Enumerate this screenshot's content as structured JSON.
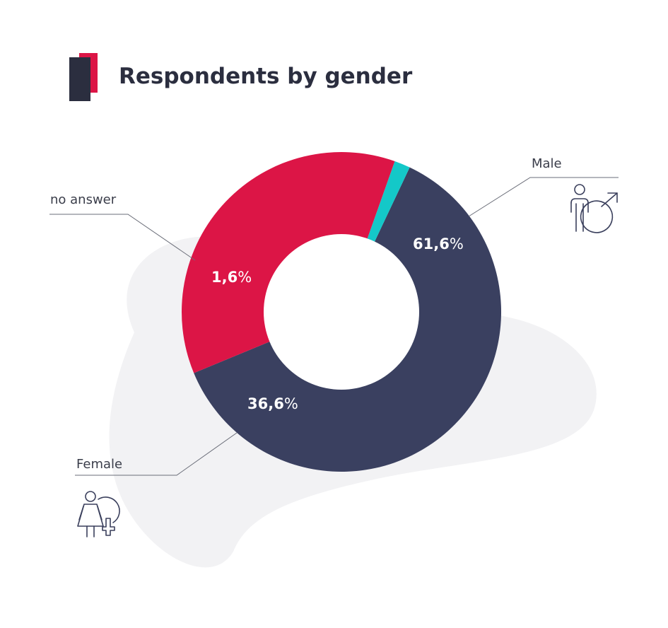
{
  "colors": {
    "background": "#ffffff",
    "blob": "#f2f2f4",
    "title": "#2b2e3f",
    "accent_dark": "#2b2e3f",
    "accent_red": "#dc1546",
    "label_text": "#3a3d4a",
    "leader_line": "#6a6d78",
    "icon": "#3a3f5c",
    "hole": "#ffffff"
  },
  "icons": {
    "male": "male-person-icon",
    "female": "female-person-icon"
  },
  "chart_data": {
    "type": "pie",
    "variant": "donut",
    "title": "Respondents by gender",
    "start_angle_deg": -64.7,
    "direction": "clockwise",
    "slices": [
      {
        "key": "male",
        "name": "Male",
        "value": 61.6,
        "label_number": "61,6",
        "label_unit": "%",
        "color": "#3a4060"
      },
      {
        "key": "female",
        "name": "Female",
        "value": 36.6,
        "label_number": "36,6",
        "label_unit": "%",
        "color": "#dc1546"
      },
      {
        "key": "no_answer",
        "name": "no answer",
        "value": 1.6,
        "label_number": "1,6",
        "label_unit": "%",
        "color": "#14c8c8"
      }
    ]
  }
}
